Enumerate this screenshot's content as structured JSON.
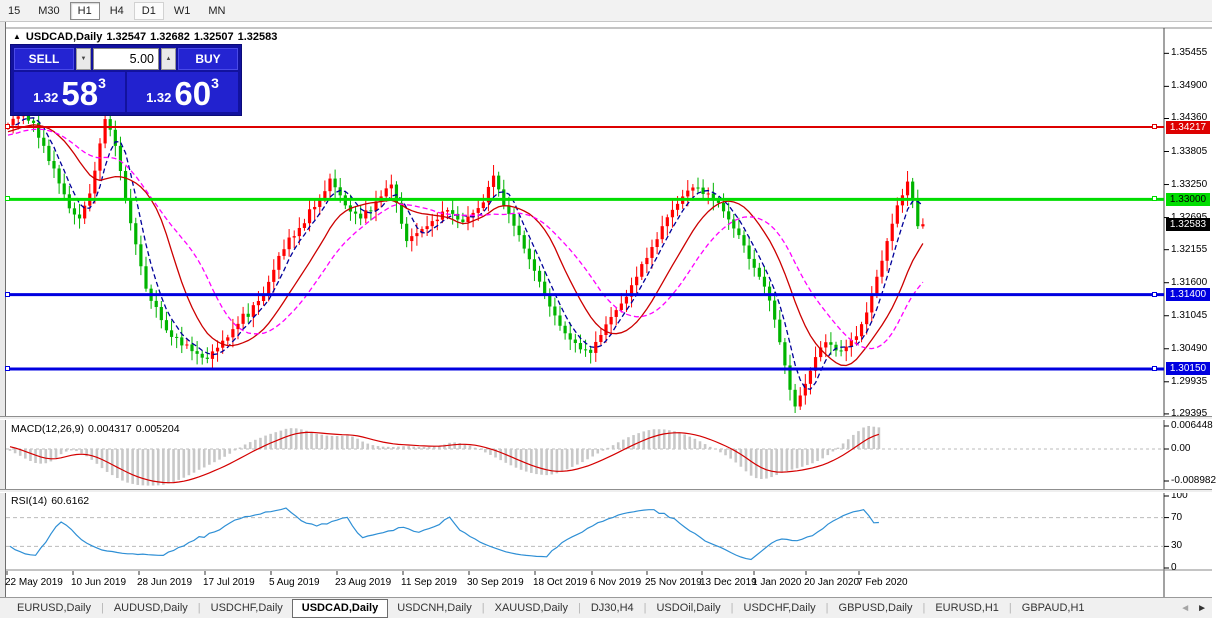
{
  "toolbar": {
    "timeframes": [
      {
        "label": "15",
        "active": false,
        "highlight": false
      },
      {
        "label": "M30",
        "active": false,
        "highlight": false
      },
      {
        "label": "H1",
        "active": true,
        "highlight": false
      },
      {
        "label": "H4",
        "active": false,
        "highlight": false
      },
      {
        "label": "D1",
        "active": false,
        "highlight": true
      },
      {
        "label": "W1",
        "active": false,
        "highlight": false
      },
      {
        "label": "MN",
        "active": false,
        "highlight": false
      }
    ]
  },
  "chart": {
    "title": "USDCAD,Daily",
    "ohlc": {
      "open": "1.32547",
      "high": "1.32682",
      "low": "1.32507",
      "close": "1.32583"
    }
  },
  "icons": {
    "collapse": "▲",
    "spinner_down": "▼",
    "spinner_up": "▲",
    "tab_scroll_left": "◄",
    "tab_scroll_right": "►"
  },
  "trade_panel": {
    "sell_label": "SELL",
    "buy_label": "BUY",
    "volume": "5.00",
    "bid": {
      "prefix": "1.32",
      "big": "58",
      "sup": "3"
    },
    "ask": {
      "prefix": "1.32",
      "big": "60",
      "sup": "3"
    }
  },
  "macd_label": {
    "name": "MACD(12,26,9)",
    "main": "0.004317",
    "signal": "0.005204"
  },
  "rsi_label": {
    "name": "RSI(14)",
    "value": "60.6162"
  },
  "tab_bar": {
    "tabs": [
      {
        "label": "EURUSD,Daily",
        "active": false
      },
      {
        "label": "AUDUSD,Daily",
        "active": false
      },
      {
        "label": "USDCHF,Daily",
        "active": false
      },
      {
        "label": "USDCAD,Daily",
        "active": true
      },
      {
        "label": "USDCNH,Daily",
        "active": false
      },
      {
        "label": "XAUUSD,Daily",
        "active": false
      },
      {
        "label": "DJ30,H4",
        "active": false
      },
      {
        "label": "USDOil,Daily",
        "active": false
      },
      {
        "label": "USDCHF,Daily",
        "active": false
      },
      {
        "label": "GBPUSD,Daily",
        "active": false
      },
      {
        "label": "EURUSD,H1",
        "active": false
      },
      {
        "label": "GBPAUD,H1",
        "active": false
      }
    ]
  },
  "chart_data": {
    "type": "candlestick",
    "symbol": "USDCAD",
    "timeframe": "Daily",
    "current_bar": {
      "open": 1.32547,
      "high": 1.32682,
      "low": 1.32507,
      "close": 1.32583
    },
    "bull_color": "#ff0000",
    "bear_color": "#00b400",
    "bars_total": 180,
    "price_axis_ticks": [
      "1.35455",
      "1.34900",
      "1.34360",
      "1.33805",
      "1.33250",
      "1.32695",
      "1.32155",
      "1.31600",
      "1.31045",
      "1.30490",
      "1.29935",
      "1.29395"
    ],
    "date_labels": [
      "22 May 2019",
      "10 Jun 2019",
      "28 Jun 2019",
      "17 Jul 2019",
      "5 Aug 2019",
      "23 Aug 2019",
      "11 Sep 2019",
      "30 Sep 2019",
      "18 Oct 2019",
      "6 Nov 2019",
      "25 Nov 2019",
      "13 Dec 2019",
      "1 Jan 2020",
      "20 Jan 2020",
      "7 Feb 2020"
    ],
    "hlines": [
      {
        "price": 1.34217,
        "label": "1.34217",
        "color": "#dd0000",
        "thickness": 2,
        "text_color": "#ffffff"
      },
      {
        "price": 1.33,
        "label": "1.33000",
        "color": "#00dd00",
        "thickness": 3,
        "text_color": "#000000"
      },
      {
        "price": 1.314,
        "label": "1.31400",
        "color": "#0000e0",
        "thickness": 3,
        "text_color": "#ffffff"
      },
      {
        "price": 1.3015,
        "label": "1.30150",
        "color": "#0000e0",
        "thickness": 3,
        "text_color": "#ffffff"
      }
    ],
    "current_price": {
      "price": 1.32583,
      "label": "1.32583",
      "bg": "#000000",
      "text_color": "#ffffff"
    },
    "moving_averages": [
      {
        "period": 5,
        "color": "#000099",
        "style": "dashed"
      },
      {
        "period": 13,
        "color": "#cc0000",
        "style": "solid"
      },
      {
        "period": 21,
        "color": "#ff00ff",
        "style": "dashed"
      }
    ],
    "price_pivots": [
      [
        0,
        1.3425
      ],
      [
        3,
        1.345
      ],
      [
        7,
        1.339
      ],
      [
        12,
        1.3285
      ],
      [
        14,
        1.3268
      ],
      [
        16,
        1.331
      ],
      [
        19,
        1.3435
      ],
      [
        21,
        1.339
      ],
      [
        24,
        1.326
      ],
      [
        27,
        1.315
      ],
      [
        31,
        1.308
      ],
      [
        36,
        1.3045
      ],
      [
        39,
        1.3032
      ],
      [
        44,
        1.3082
      ],
      [
        50,
        1.314
      ],
      [
        53,
        1.3205
      ],
      [
        57,
        1.3252
      ],
      [
        61,
        1.33
      ],
      [
        63,
        1.3335
      ],
      [
        66,
        1.329
      ],
      [
        69,
        1.3268
      ],
      [
        73,
        1.3305
      ],
      [
        75,
        1.3325
      ],
      [
        78,
        1.323
      ],
      [
        82,
        1.3255
      ],
      [
        86,
        1.3282
      ],
      [
        89,
        1.3262
      ],
      [
        93,
        1.3295
      ],
      [
        95,
        1.334
      ],
      [
        97,
        1.329
      ],
      [
        100,
        1.324
      ],
      [
        103,
        1.318
      ],
      [
        106,
        1.312
      ],
      [
        109,
        1.3075
      ],
      [
        112,
        1.3048
      ],
      [
        114,
        1.3042
      ],
      [
        117,
        1.309
      ],
      [
        120,
        1.3125
      ],
      [
        123,
        1.317
      ],
      [
        126,
        1.322
      ],
      [
        129,
        1.327
      ],
      [
        132,
        1.3305
      ],
      [
        134,
        1.332
      ],
      [
        137,
        1.331
      ],
      [
        140,
        1.328
      ],
      [
        143,
        1.324
      ],
      [
        145,
        1.32
      ],
      [
        147,
        1.317
      ],
      [
        149,
        1.313
      ],
      [
        151,
        1.306
      ],
      [
        153,
        1.298
      ],
      [
        154,
        1.2952
      ],
      [
        156,
        1.299
      ],
      [
        158,
        1.3035
      ],
      [
        160,
        1.306
      ],
      [
        163,
        1.3045
      ],
      [
        166,
        1.307
      ],
      [
        168,
        1.311
      ],
      [
        170,
        1.317
      ],
      [
        172,
        1.323
      ],
      [
        174,
        1.329
      ],
      [
        176,
        1.333
      ],
      [
        177,
        1.33
      ],
      [
        178,
        1.3255
      ],
      [
        179,
        1.32583
      ]
    ],
    "macd": {
      "fast": 12,
      "slow": 26,
      "signal": 9,
      "main_value": 0.004317,
      "signal_value": 0.005204,
      "axis_max": 0.006448,
      "axis_zero": "0.00",
      "axis_min": -0.008982,
      "histogram_color": "#c8c8c8",
      "signal_color": "#d40000"
    },
    "rsi": {
      "period": 14,
      "value": 60.6162,
      "levels": [
        70,
        30
      ],
      "axis_ticks": [
        "100",
        "70",
        "30",
        "0"
      ],
      "color": "#2e8fd5"
    }
  }
}
